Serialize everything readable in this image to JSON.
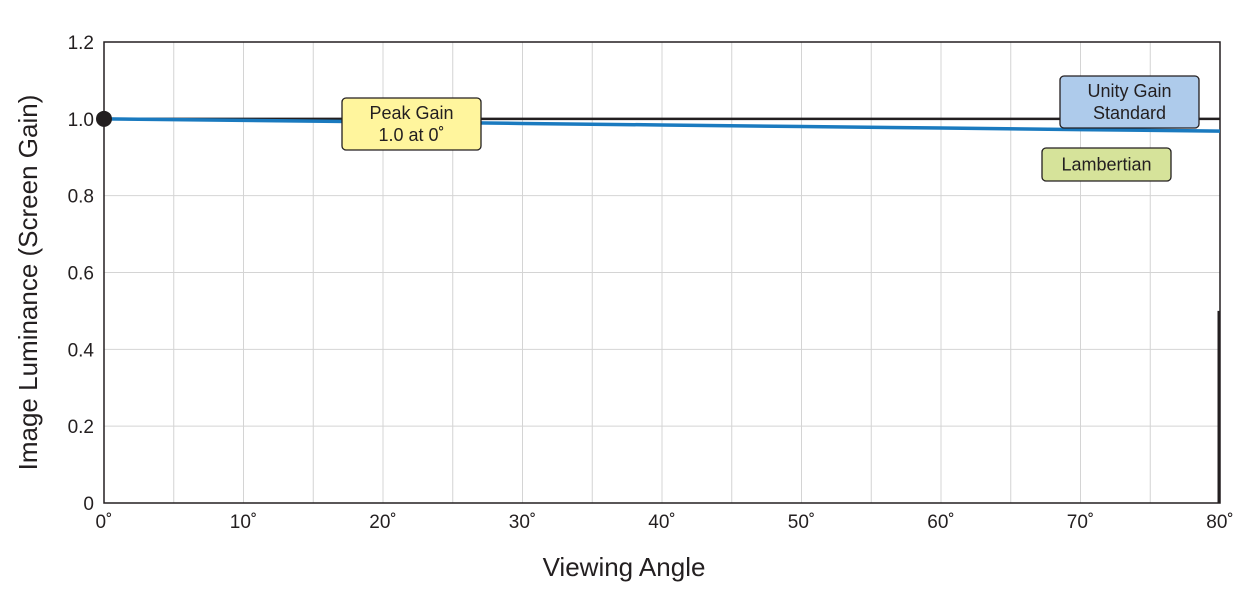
{
  "chart_data": {
    "type": "line",
    "xlabel": "Viewing Angle",
    "ylabel": "Image Luminance (Screen Gain)",
    "xlim": [
      0,
      80
    ],
    "ylim": [
      0,
      1.2
    ],
    "x_ticks": [
      "0˚",
      "10˚",
      "20˚",
      "30˚",
      "40˚",
      "50˚",
      "60˚",
      "70˚",
      "80˚"
    ],
    "y_ticks": [
      "0",
      "0.2",
      "0.4",
      "0.6",
      "0.8",
      "1.0",
      "1.2"
    ],
    "grid": true,
    "series": [
      {
        "name": "Unity Gain Standard",
        "color": "#231f20",
        "x": [
          0,
          80
        ],
        "y": [
          1.0,
          1.0
        ]
      },
      {
        "name": "Lambertian",
        "color": "#1a7abf",
        "x": [
          0,
          10,
          20,
          30,
          40,
          50,
          60,
          70,
          80
        ],
        "y": [
          1.0,
          0.996,
          0.992,
          0.988,
          0.984,
          0.98,
          0.976,
          0.972,
          0.968
        ]
      }
    ],
    "annotations": [
      {
        "id": "peak",
        "lines": [
          "Peak Gain",
          "1.0 at 0˚"
        ],
        "color": "#fff59d",
        "x": 0,
        "y": 1.0,
        "marker": true
      },
      {
        "id": "unity",
        "lines": [
          "Unity Gain",
          "Standard"
        ],
        "color": "#aecbeb"
      },
      {
        "id": "lambertian",
        "lines": [
          "Lambertian"
        ],
        "color": "#d6e39a"
      }
    ],
    "vertical_marker": {
      "x": 80,
      "y_from": 0,
      "y_to": 0.5,
      "color": "#231f20"
    }
  }
}
